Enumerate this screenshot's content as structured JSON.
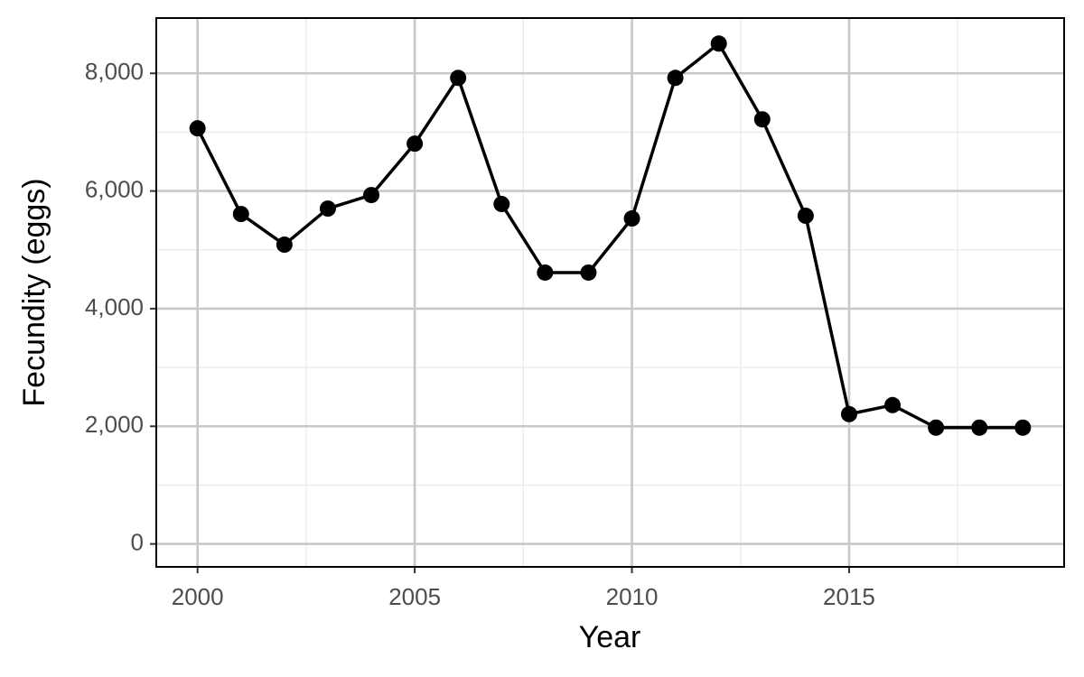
{
  "chart_data": {
    "type": "line",
    "x_label": "Year",
    "y_label": "Fecundity (eggs)",
    "x": [
      2000,
      2001,
      2002,
      2003,
      2004,
      2005,
      2006,
      2007,
      2008,
      2009,
      2010,
      2011,
      2012,
      2013,
      2014,
      2015,
      2016,
      2017,
      2018,
      2019
    ],
    "series": [
      {
        "color": "#000000",
        "values": [
          7065,
          5609,
          5088,
          5701,
          5931,
          6805,
          7923,
          5778,
          4613,
          4613,
          5533,
          7923,
          8506,
          7218,
          5579,
          2207,
          2360,
          1977,
          1977,
          1977
        ]
      }
    ],
    "xlim": [
      1999.05,
      2019.95
    ],
    "xticks": [
      2000,
      2005,
      2010,
      2015
    ],
    "minor_xticks": [
      2002.5,
      2007.5,
      2012.5,
      2017.5
    ],
    "ylim": [
      -390,
      8940
    ],
    "yticks": [
      0,
      {
        "value": 2000,
        "label": "2,000"
      },
      {
        "value": 4000,
        "label": "4,000"
      },
      {
        "value": 6000,
        "label": "6,000"
      },
      {
        "value": 8000,
        "label": "8,000"
      }
    ],
    "minor_yticks": [
      1000,
      3000,
      5000,
      7000
    ],
    "grid": true,
    "markers": true
  }
}
